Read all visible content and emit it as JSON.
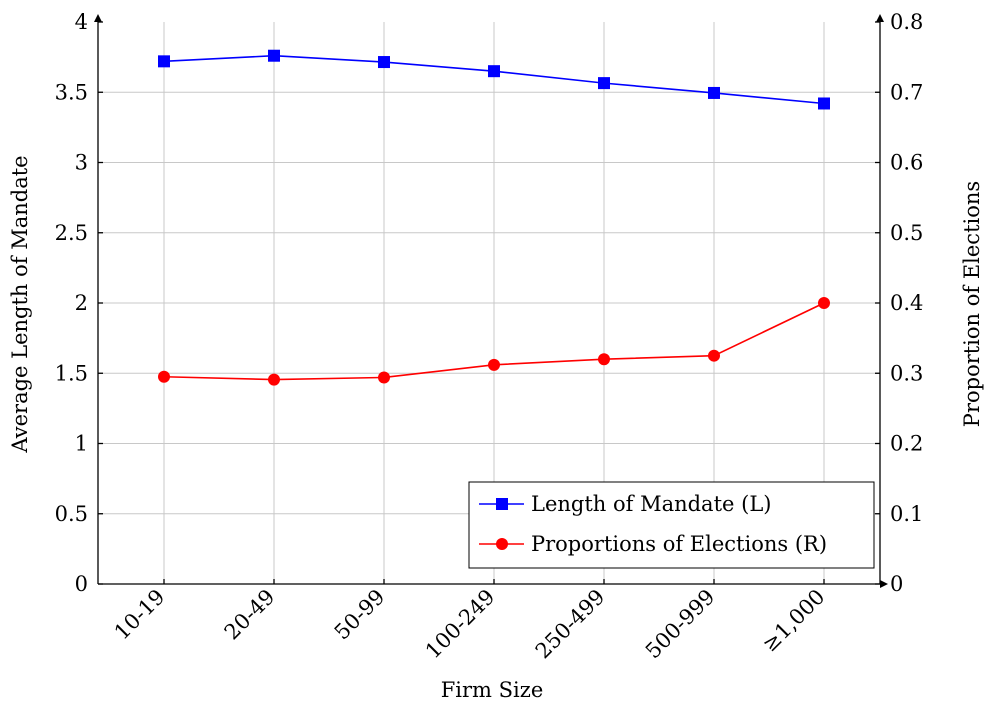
{
  "chart_data": {
    "type": "line",
    "categories": [
      "10-19",
      "20-49",
      "50-99",
      "100-249",
      "250-499",
      "500-999",
      "≥1,000"
    ],
    "xlabel": "Firm Size",
    "ylabel_left": "Average Length of Mandate",
    "ylabel_right": "Proportion of Elections",
    "ylim_left": [
      0,
      4
    ],
    "ylim_right": [
      0,
      0.8
    ],
    "yticks_left": [
      "0",
      "0.5",
      "1",
      "1.5",
      "2",
      "2.5",
      "3",
      "3.5",
      "4"
    ],
    "yticks_right": [
      "0",
      "0.1",
      "0.2",
      "0.3",
      "0.4",
      "0.5",
      "0.6",
      "0.7",
      "0.8"
    ],
    "grid": true,
    "legend_position": "bottom-right",
    "series": [
      {
        "name": "Length of Mandate (L)",
        "axis": "left",
        "color": "#0000ff",
        "marker": "square",
        "values": [
          3.72,
          3.76,
          3.715,
          3.65,
          3.565,
          3.495,
          3.42
        ]
      },
      {
        "name": "Proportions of Elections (R)",
        "axis": "right",
        "color": "#ff0000",
        "marker": "circle",
        "values": [
          0.295,
          0.291,
          0.294,
          0.312,
          0.32,
          0.325,
          0.4
        ]
      }
    ]
  }
}
